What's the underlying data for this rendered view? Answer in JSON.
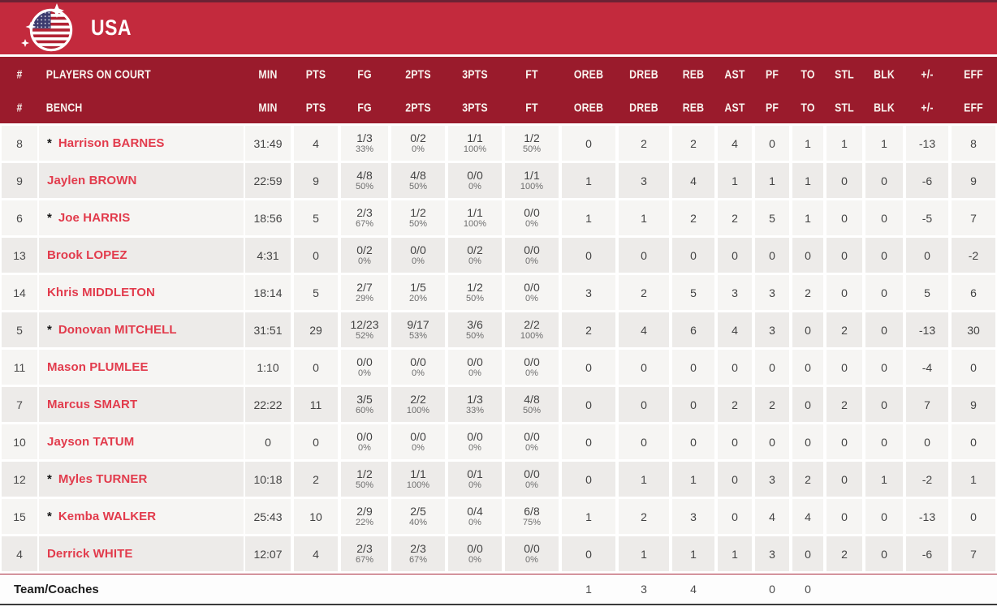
{
  "team": {
    "name": "USA"
  },
  "header": {
    "number_symbol": "#",
    "on_court_label": "PLAYERS ON COURT",
    "bench_label": "BENCH",
    "stat_columns": [
      "MIN",
      "PTS",
      "FG",
      "2PTS",
      "3PTS",
      "FT",
      "OREB",
      "DREB",
      "REB",
      "AST",
      "PF",
      "TO",
      "STL",
      "BLK",
      "+/-",
      "EFF"
    ]
  },
  "colors": {
    "topbar_red": "#C32A3D",
    "topbar_edge": "#6B2234",
    "header_maroon": "#9A1B2C",
    "player_name_red": "#E23B4C",
    "row_light": "#f6f5f3",
    "row_dark": "#edebe9",
    "flag_blue": "#3C3B6E",
    "flag_red": "#B22234"
  },
  "players": [
    {
      "num": "8",
      "starter": true,
      "name": "Harrison BARNES",
      "min": "31:49",
      "pts": "4",
      "fg": "1/3",
      "fg_pct": "33%",
      "p2": "0/2",
      "p2_pct": "0%",
      "p3": "1/1",
      "p3_pct": "100%",
      "ft": "1/2",
      "ft_pct": "50%",
      "oreb": "0",
      "dreb": "2",
      "reb": "2",
      "ast": "4",
      "pf": "0",
      "to": "1",
      "stl": "1",
      "blk": "1",
      "pm": "-13",
      "eff": "8"
    },
    {
      "num": "9",
      "starter": false,
      "name": "Jaylen BROWN",
      "min": "22:59",
      "pts": "9",
      "fg": "4/8",
      "fg_pct": "50%",
      "p2": "4/8",
      "p2_pct": "50%",
      "p3": "0/0",
      "p3_pct": "0%",
      "ft": "1/1",
      "ft_pct": "100%",
      "oreb": "1",
      "dreb": "3",
      "reb": "4",
      "ast": "1",
      "pf": "1",
      "to": "1",
      "stl": "0",
      "blk": "0",
      "pm": "-6",
      "eff": "9"
    },
    {
      "num": "6",
      "starter": true,
      "name": "Joe HARRIS",
      "min": "18:56",
      "pts": "5",
      "fg": "2/3",
      "fg_pct": "67%",
      "p2": "1/2",
      "p2_pct": "50%",
      "p3": "1/1",
      "p3_pct": "100%",
      "ft": "0/0",
      "ft_pct": "0%",
      "oreb": "1",
      "dreb": "1",
      "reb": "2",
      "ast": "2",
      "pf": "5",
      "to": "1",
      "stl": "0",
      "blk": "0",
      "pm": "-5",
      "eff": "7"
    },
    {
      "num": "13",
      "starter": false,
      "name": "Brook LOPEZ",
      "min": "4:31",
      "pts": "0",
      "fg": "0/2",
      "fg_pct": "0%",
      "p2": "0/0",
      "p2_pct": "0%",
      "p3": "0/2",
      "p3_pct": "0%",
      "ft": "0/0",
      "ft_pct": "0%",
      "oreb": "0",
      "dreb": "0",
      "reb": "0",
      "ast": "0",
      "pf": "0",
      "to": "0",
      "stl": "0",
      "blk": "0",
      "pm": "0",
      "eff": "-2"
    },
    {
      "num": "14",
      "starter": false,
      "name": "Khris MIDDLETON",
      "min": "18:14",
      "pts": "5",
      "fg": "2/7",
      "fg_pct": "29%",
      "p2": "1/5",
      "p2_pct": "20%",
      "p3": "1/2",
      "p3_pct": "50%",
      "ft": "0/0",
      "ft_pct": "0%",
      "oreb": "3",
      "dreb": "2",
      "reb": "5",
      "ast": "3",
      "pf": "3",
      "to": "2",
      "stl": "0",
      "blk": "0",
      "pm": "5",
      "eff": "6"
    },
    {
      "num": "5",
      "starter": true,
      "name": "Donovan MITCHELL",
      "min": "31:51",
      "pts": "29",
      "fg": "12/23",
      "fg_pct": "52%",
      "p2": "9/17",
      "p2_pct": "53%",
      "p3": "3/6",
      "p3_pct": "50%",
      "ft": "2/2",
      "ft_pct": "100%",
      "oreb": "2",
      "dreb": "4",
      "reb": "6",
      "ast": "4",
      "pf": "3",
      "to": "0",
      "stl": "2",
      "blk": "0",
      "pm": "-13",
      "eff": "30"
    },
    {
      "num": "11",
      "starter": false,
      "name": "Mason PLUMLEE",
      "min": "1:10",
      "pts": "0",
      "fg": "0/0",
      "fg_pct": "0%",
      "p2": "0/0",
      "p2_pct": "0%",
      "p3": "0/0",
      "p3_pct": "0%",
      "ft": "0/0",
      "ft_pct": "0%",
      "oreb": "0",
      "dreb": "0",
      "reb": "0",
      "ast": "0",
      "pf": "0",
      "to": "0",
      "stl": "0",
      "blk": "0",
      "pm": "-4",
      "eff": "0"
    },
    {
      "num": "7",
      "starter": false,
      "name": "Marcus SMART",
      "min": "22:22",
      "pts": "11",
      "fg": "3/5",
      "fg_pct": "60%",
      "p2": "2/2",
      "p2_pct": "100%",
      "p3": "1/3",
      "p3_pct": "33%",
      "ft": "4/8",
      "ft_pct": "50%",
      "oreb": "0",
      "dreb": "0",
      "reb": "0",
      "ast": "2",
      "pf": "2",
      "to": "0",
      "stl": "2",
      "blk": "0",
      "pm": "7",
      "eff": "9"
    },
    {
      "num": "10",
      "starter": false,
      "name": "Jayson TATUM",
      "min": "0",
      "pts": "0",
      "fg": "0/0",
      "fg_pct": "0%",
      "p2": "0/0",
      "p2_pct": "0%",
      "p3": "0/0",
      "p3_pct": "0%",
      "ft": "0/0",
      "ft_pct": "0%",
      "oreb": "0",
      "dreb": "0",
      "reb": "0",
      "ast": "0",
      "pf": "0",
      "to": "0",
      "stl": "0",
      "blk": "0",
      "pm": "0",
      "eff": "0"
    },
    {
      "num": "12",
      "starter": true,
      "name": "Myles TURNER",
      "min": "10:18",
      "pts": "2",
      "fg": "1/2",
      "fg_pct": "50%",
      "p2": "1/1",
      "p2_pct": "100%",
      "p3": "0/1",
      "p3_pct": "0%",
      "ft": "0/0",
      "ft_pct": "0%",
      "oreb": "0",
      "dreb": "1",
      "reb": "1",
      "ast": "0",
      "pf": "3",
      "to": "2",
      "stl": "0",
      "blk": "1",
      "pm": "-2",
      "eff": "1"
    },
    {
      "num": "15",
      "starter": true,
      "name": "Kemba WALKER",
      "min": "25:43",
      "pts": "10",
      "fg": "2/9",
      "fg_pct": "22%",
      "p2": "2/5",
      "p2_pct": "40%",
      "p3": "0/4",
      "p3_pct": "0%",
      "ft": "6/8",
      "ft_pct": "75%",
      "oreb": "1",
      "dreb": "2",
      "reb": "3",
      "ast": "0",
      "pf": "4",
      "to": "4",
      "stl": "0",
      "blk": "0",
      "pm": "-13",
      "eff": "0"
    },
    {
      "num": "4",
      "starter": false,
      "name": "Derrick WHITE",
      "min": "12:07",
      "pts": "4",
      "fg": "2/3",
      "fg_pct": "67%",
      "p2": "2/3",
      "p2_pct": "67%",
      "p3": "0/0",
      "p3_pct": "0%",
      "ft": "0/0",
      "ft_pct": "0%",
      "oreb": "0",
      "dreb": "1",
      "reb": "1",
      "ast": "1",
      "pf": "3",
      "to": "0",
      "stl": "2",
      "blk": "0",
      "pm": "-6",
      "eff": "7"
    }
  ],
  "team_row": {
    "label": "Team/Coaches",
    "stats": {
      "oreb": "1",
      "dreb": "3",
      "reb": "4",
      "pf": "0",
      "to": "0"
    }
  }
}
